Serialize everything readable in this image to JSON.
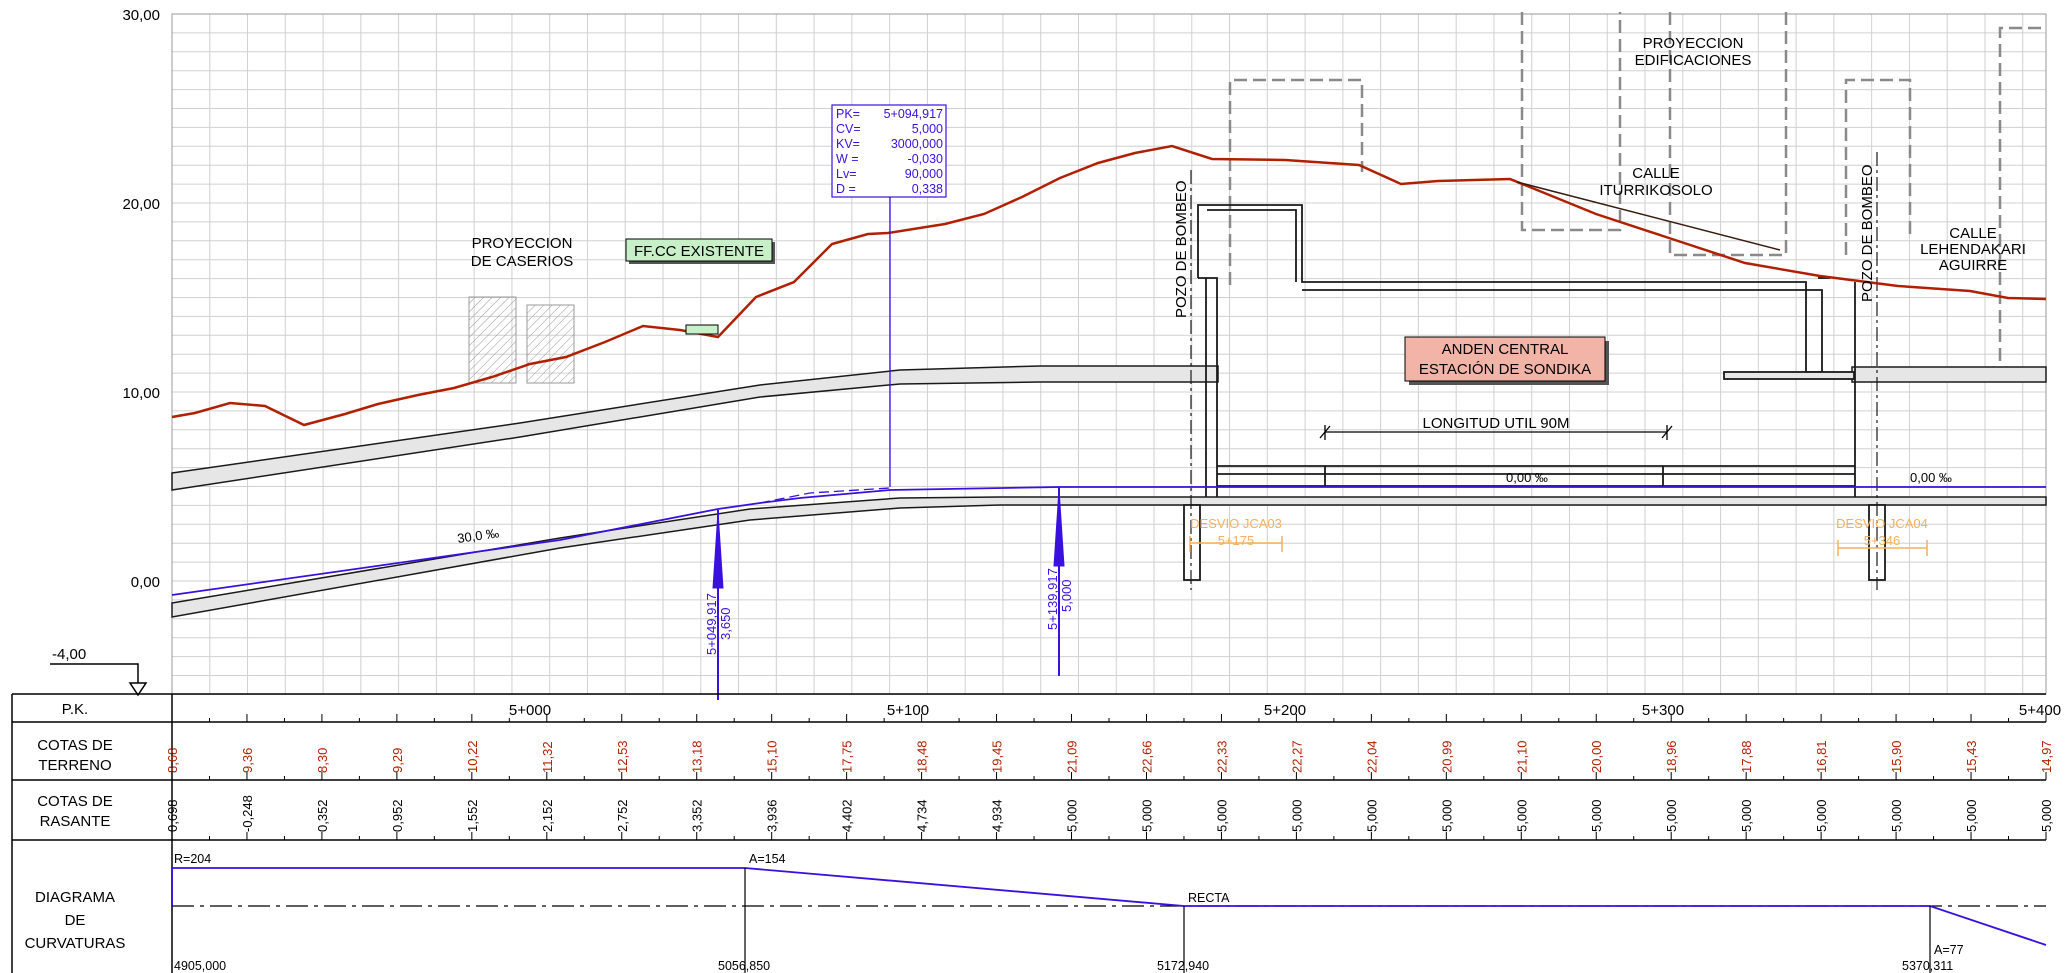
{
  "y_axis": {
    "ticks": [
      "30,00",
      "20,00",
      "10,00",
      "0,00"
    ],
    "datum_label": "-4,00"
  },
  "rows": {
    "pk": "P.K.",
    "terreno": [
      "COTAS DE",
      "TERRENO"
    ],
    "rasante": [
      "COTAS DE",
      "RASANTE"
    ],
    "curvaturas": [
      "DIAGRAMA",
      "DE",
      "CURVATURAS"
    ]
  },
  "pk_labels": [
    "5+000",
    "5+100",
    "5+200",
    "5+300",
    "5+400"
  ],
  "cotas_terreno": [
    "8,68",
    "9,36",
    "8,30",
    "9,29",
    "10,22",
    "11,32",
    "12,53",
    "13,18",
    "15,10",
    "17,75",
    "18,48",
    "19,45",
    "21,09",
    "22,66",
    "22,33",
    "22,27",
    "22,04",
    "20,99",
    "21,10",
    "20,00",
    "18,96",
    "17,88",
    "16,81",
    "15,90",
    "15,43",
    "14,97"
  ],
  "cotas_rasante": [
    "0,698",
    "-0,248",
    "0,352",
    "0,952",
    "1,552",
    "2,152",
    "2,752",
    "3,352",
    "3,936",
    "4,402",
    "4,734",
    "4,934",
    "5,000",
    "5,000",
    "5,000",
    "5,000",
    "5,000",
    "5,000",
    "5,000",
    "5,000",
    "5,000",
    "5,000",
    "5,000",
    "5,000",
    "5,000",
    "5,000"
  ],
  "curvaturas": {
    "r_label": "R=204",
    "a154_label": "A=154",
    "recta_label": "RECTA",
    "a77_label": "A=77",
    "stations": [
      "4905,000",
      "5056,850",
      "5172,940",
      "5370,311"
    ]
  },
  "vertical_curve_box": {
    "keys": [
      "PK=",
      "CV=",
      "KV=",
      "W =",
      "Lv=",
      "D ="
    ],
    "values": [
      "5+094,917",
      "5,000",
      "3000,000",
      "-0,030",
      "90,000",
      "0,338"
    ]
  },
  "annotations": {
    "proyeccion_caserios": [
      "PROYECCION",
      "DE CASERIOS"
    ],
    "ffcc_existente": "FF.CC EXISTENTE",
    "pozo_bombeo": "POZO DE BOMBEO",
    "proyeccion_edificaciones": [
      "PROYECCION",
      "EDIFICACIONES"
    ],
    "calle_iturrikosolo": [
      "CALLE",
      "ITURRIKOSOLO"
    ],
    "calle_lehendakari": [
      "CALLE",
      "LEHENDAKARI",
      "AGUIRRE"
    ],
    "anden_central": [
      "ANDEN CENTRAL",
      "ESTACIÓN DE SONDIKA"
    ],
    "longitud_util": "LONGITUD UTIL 90M",
    "pendiente_30": "30,0 ‰",
    "pendiente_0_a": "0,00 ‰",
    "pendiente_0_b": "0,00 ‰",
    "desvio_jca03": [
      "DESVIO JCA03",
      "5+175"
    ],
    "desvio_jca04": [
      "DESVIO JCA04",
      "5+346"
    ],
    "vertice_1": [
      "5+049,917",
      "3,650"
    ],
    "vertice_2": [
      "5+139,917",
      "5,000"
    ]
  },
  "colors": {
    "terrain": "#b02000",
    "grade": "#3a10e0",
    "grid": "#c8c8c8",
    "ffcc_fill": "#c8f0c8",
    "anden_fill": "#f2b4a6",
    "desvio": "#f4b060",
    "structure": "#1a1a1a"
  }
}
